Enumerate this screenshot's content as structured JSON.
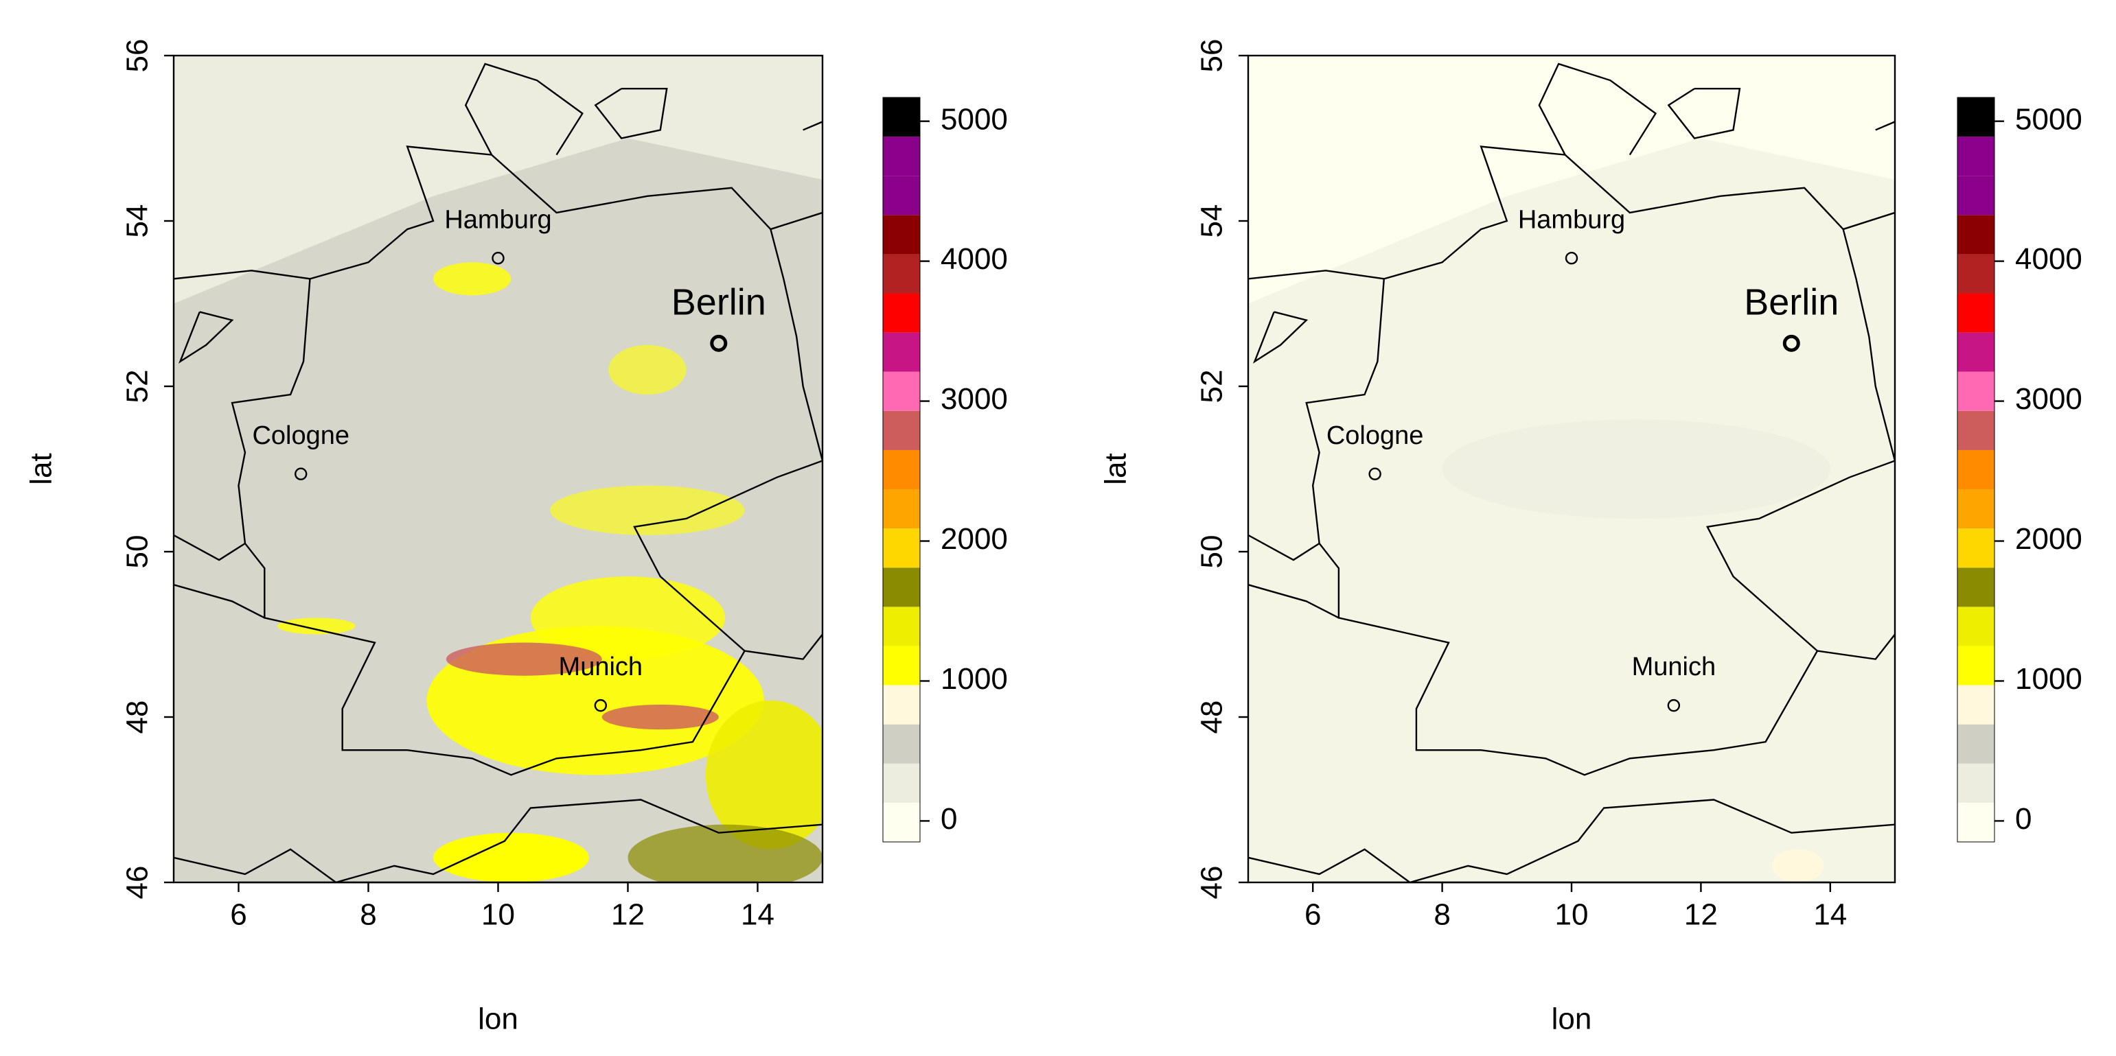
{
  "chart_data": [
    {
      "type": "raster-map",
      "xlabel": "lon",
      "ylabel": "lat",
      "xlim": [
        5,
        15
      ],
      "ylim": [
        46,
        56
      ],
      "xticks": [
        6,
        8,
        10,
        12,
        14
      ],
      "yticks": [
        46,
        48,
        50,
        52,
        54,
        56
      ],
      "cities": [
        {
          "name": "Hamburg",
          "lon": 10.0,
          "lat": 53.55
        },
        {
          "name": "Berlin",
          "lon": 13.4,
          "lat": 52.52,
          "highlight": true
        },
        {
          "name": "Cologne",
          "lon": 6.96,
          "lat": 50.94
        },
        {
          "name": "Munich",
          "lon": 11.58,
          "lat": 48.14
        }
      ],
      "colorbar": {
        "ticks": [
          0,
          1000,
          2000,
          3000,
          4000,
          5000
        ],
        "levels": [
          -150,
          130,
          410,
          690,
          970,
          1250,
          1530,
          1810,
          2090,
          2370,
          2650,
          2930,
          3210,
          3490,
          3770,
          4050,
          4330,
          4610,
          4890,
          5170
        ],
        "colors": [
          "#fffff0",
          "#ececdf",
          "#cfcfc4",
          "#fff8dc",
          "#ffff00",
          "#eeee00",
          "#8b8b00",
          "#ffd700",
          "#ffa500",
          "#ff8c00",
          "#cd5c5c",
          "#ff69b4",
          "#c71585",
          "#ff0000",
          "#b22222",
          "#8b0000",
          "#8b008b",
          "#8b008b",
          "#000000"
        ]
      }
    },
    {
      "type": "raster-map",
      "xlabel": "lon",
      "ylabel": "lat",
      "xlim": [
        5,
        15
      ],
      "ylim": [
        46,
        56
      ],
      "xticks": [
        6,
        8,
        10,
        12,
        14
      ],
      "yticks": [
        46,
        48,
        50,
        52,
        54,
        56
      ],
      "cities": [
        {
          "name": "Hamburg",
          "lon": 10.0,
          "lat": 53.55
        },
        {
          "name": "Berlin",
          "lon": 13.4,
          "lat": 52.52,
          "highlight": true
        },
        {
          "name": "Cologne",
          "lon": 6.96,
          "lat": 50.94
        },
        {
          "name": "Munich",
          "lon": 11.58,
          "lat": 48.14
        }
      ],
      "colorbar": {
        "ticks": [
          0,
          1000,
          2000,
          3000,
          4000,
          5000
        ],
        "levels": [
          -150,
          130,
          410,
          690,
          970,
          1250,
          1530,
          1810,
          2090,
          2370,
          2650,
          2930,
          3210,
          3490,
          3770,
          4050,
          4330,
          4610,
          4890,
          5170
        ],
        "colors": [
          "#fffff0",
          "#ececdf",
          "#cfcfc4",
          "#fff8dc",
          "#ffff00",
          "#eeee00",
          "#8b8b00",
          "#ffd700",
          "#ffa500",
          "#ff8c00",
          "#cd5c5c",
          "#ff69b4",
          "#c71585",
          "#ff0000",
          "#b22222",
          "#8b0000",
          "#8b008b",
          "#8b008b",
          "#000000"
        ]
      }
    }
  ]
}
